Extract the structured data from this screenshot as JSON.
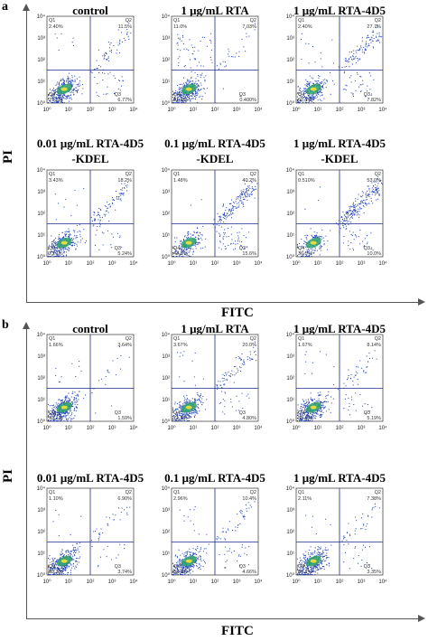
{
  "figure": {
    "x_axis_title": "FITC",
    "y_axis_title": "PI",
    "quadrant_labels": [
      "Q1",
      "Q2",
      "Q3",
      "Q4"
    ],
    "tick_labels": [
      "10⁰",
      "10¹",
      "10²",
      "10³",
      "10⁴"
    ],
    "colors": {
      "dots": "#1f3fb8",
      "dense": "#2fa36b",
      "core": "#f2e23a",
      "gate": "#1a2a8a"
    }
  },
  "panels": [
    {
      "letter": "a"
    },
    {
      "letter": "b"
    }
  ],
  "chart_data": [
    {
      "type": "scatter",
      "panel": "a",
      "x_scale": "log",
      "y_scale": "log",
      "xlim": [
        1,
        10000
      ],
      "ylim": [
        1,
        10000
      ],
      "plots": [
        {
          "title": "control",
          "Q1": "2.40%",
          "Q2": "11.5%",
          "Q3": "6.77%",
          "Q4": "79.3%"
        },
        {
          "title": "1 μg/mL RTA",
          "Q1": "11.0%",
          "Q2": "7.03%",
          "Q3": "0.400%",
          "Q4": "81.6%"
        },
        {
          "title": "1 μg/mL RTA-4D5",
          "Q1": "2.40%",
          "Q2": "27.7%",
          "Q3": "7.82%",
          "Q4": "62.1%"
        },
        {
          "title": "0.01 μg/mL RTA-4D5",
          "title2": "-KDEL",
          "Q1": "3.43%",
          "Q2": "18.2%",
          "Q3": "5.24%",
          "Q4": "73.1%"
        },
        {
          "title": "0.1 μg/mL RTA-4D5",
          "title2": "-KDEL",
          "Q1": "1.48%",
          "Q2": "40.2%",
          "Q3": "15.6%",
          "Q4": "42.8%"
        },
        {
          "title": "1 μg/mL RTA-4D5",
          "title2": "-KDEL",
          "Q1": "0.510%",
          "Q2": "53.0%",
          "Q3": "10.0%",
          "Q4": "36.5%"
        }
      ]
    },
    {
      "type": "scatter",
      "panel": "b",
      "x_scale": "log",
      "y_scale": "log",
      "xlim": [
        1,
        10000
      ],
      "ylim": [
        1,
        10000
      ],
      "plots": [
        {
          "title": "control",
          "Q1": "1.66%",
          "Q2": "3.64%",
          "Q3": "1.59%",
          "Q4": "93.1%"
        },
        {
          "title": "1 μg/mL RTA",
          "Q1": "3.67%",
          "Q2": "20.0%",
          "Q3": "4.80%",
          "Q4": "71.5%"
        },
        {
          "title": "1 μg/mL RTA-4D5",
          "Q1": "1.67%",
          "Q2": "8.14%",
          "Q3": "5.19%",
          "Q4": "85.0%"
        },
        {
          "title": "0.01 μg/mL RTA-4D5",
          "title2": "-KDEL",
          "Q1": "1.10%",
          "Q2": "6.90%",
          "Q3": "3.74%",
          "Q4": "88.3%"
        },
        {
          "title": "0.1 μg/mL RTA-4D5",
          "title2": "-KDEL",
          "Q1": "2.96%",
          "Q2": "10.4%",
          "Q3": "4.66%",
          "Q4": "82.0%"
        },
        {
          "title": "1 μg/mL RTA-4D5",
          "title2": "-KDEL",
          "Q1": "2.11%",
          "Q2": "7.38%",
          "Q3": "3.35%",
          "Q4": "87.2%"
        }
      ]
    }
  ]
}
